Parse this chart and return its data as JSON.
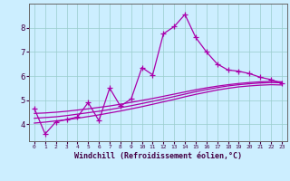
{
  "xlabel": "Windchill (Refroidissement éolien,°C)",
  "bg_color": "#cceeff",
  "line_color": "#aa00aa",
  "grid_color": "#99cccc",
  "x_main": [
    0,
    1,
    2,
    3,
    4,
    5,
    6,
    7,
    8,
    9,
    10,
    11,
    12,
    13,
    14,
    15,
    16,
    17,
    18,
    19,
    20,
    21,
    22,
    23
  ],
  "y_main": [
    4.65,
    3.6,
    4.1,
    4.2,
    4.3,
    4.9,
    4.15,
    5.5,
    4.75,
    5.05,
    6.35,
    6.05,
    7.75,
    8.05,
    8.55,
    7.6,
    7.0,
    6.5,
    6.25,
    6.2,
    6.1,
    5.95,
    5.85,
    5.7
  ],
  "y_smooth1": [
    4.25,
    4.28,
    4.31,
    4.36,
    4.42,
    4.48,
    4.54,
    4.61,
    4.69,
    4.77,
    4.86,
    4.95,
    5.05,
    5.15,
    5.25,
    5.35,
    5.44,
    5.52,
    5.59,
    5.64,
    5.68,
    5.71,
    5.73,
    5.72
  ],
  "y_smooth2": [
    4.45,
    4.47,
    4.5,
    4.54,
    4.59,
    4.64,
    4.7,
    4.76,
    4.83,
    4.91,
    4.99,
    5.07,
    5.16,
    5.25,
    5.34,
    5.43,
    5.51,
    5.58,
    5.64,
    5.69,
    5.73,
    5.76,
    5.78,
    5.76
  ],
  "y_smooth3": [
    4.05,
    4.09,
    4.14,
    4.19,
    4.25,
    4.32,
    4.39,
    4.47,
    4.55,
    4.64,
    4.73,
    4.83,
    4.93,
    5.03,
    5.14,
    5.24,
    5.33,
    5.42,
    5.49,
    5.55,
    5.59,
    5.62,
    5.64,
    5.63
  ],
  "xlim": [
    -0.5,
    23.5
  ],
  "ylim": [
    3.3,
    9.0
  ],
  "yticks": [
    4,
    5,
    6,
    7,
    8
  ],
  "xticks": [
    0,
    1,
    2,
    3,
    4,
    5,
    6,
    7,
    8,
    9,
    10,
    11,
    12,
    13,
    14,
    15,
    16,
    17,
    18,
    19,
    20,
    21,
    22,
    23
  ],
  "markersize": 4,
  "linewidth": 0.9
}
